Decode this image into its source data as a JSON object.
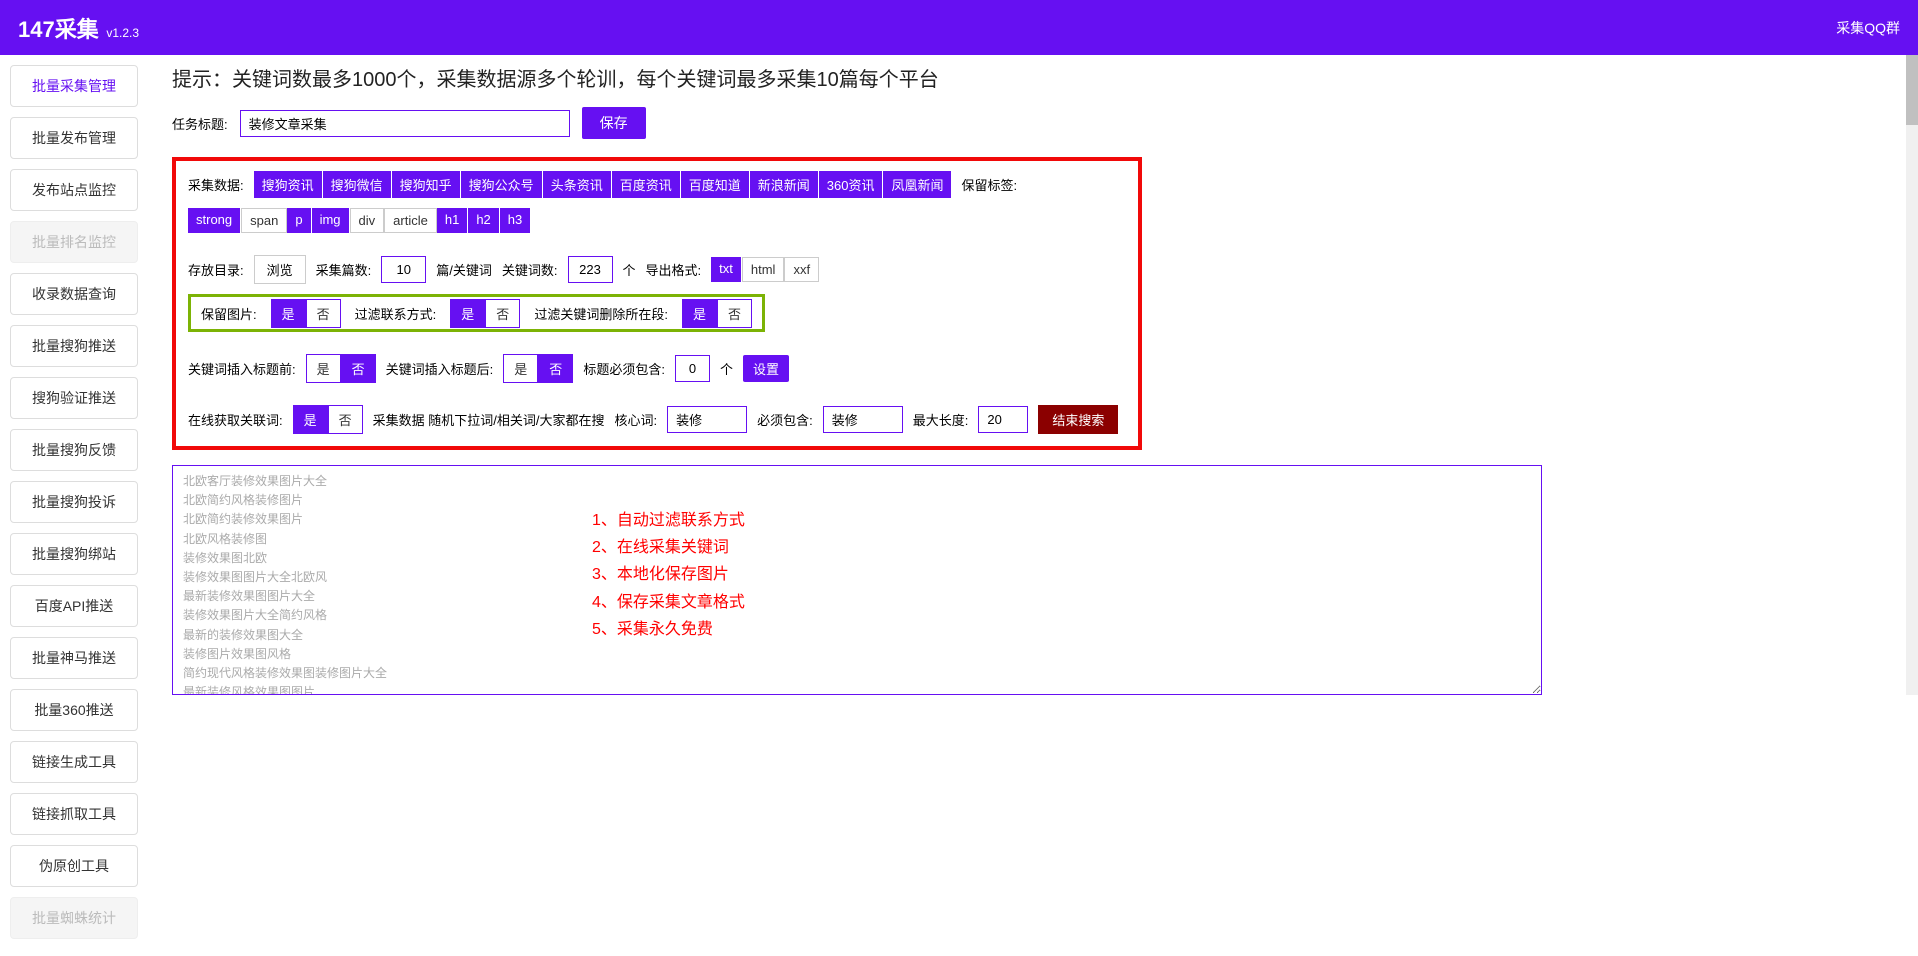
{
  "header": {
    "title": "147采集",
    "version": "v1.2.3",
    "right": "采集QQ群"
  },
  "sidebar": [
    {
      "label": "批量采集管理",
      "state": "active"
    },
    {
      "label": "批量发布管理",
      "state": ""
    },
    {
      "label": "发布站点监控",
      "state": ""
    },
    {
      "label": "批量排名监控",
      "state": "disabled"
    },
    {
      "label": "收录数据查询",
      "state": ""
    },
    {
      "label": "批量搜狗推送",
      "state": ""
    },
    {
      "label": "搜狗验证推送",
      "state": ""
    },
    {
      "label": "批量搜狗反馈",
      "state": ""
    },
    {
      "label": "批量搜狗投诉",
      "state": ""
    },
    {
      "label": "批量搜狗绑站",
      "state": ""
    },
    {
      "label": "百度API推送",
      "state": ""
    },
    {
      "label": "批量神马推送",
      "state": ""
    },
    {
      "label": "批量360推送",
      "state": ""
    },
    {
      "label": "链接生成工具",
      "state": ""
    },
    {
      "label": "链接抓取工具",
      "state": ""
    },
    {
      "label": "伪原创工具",
      "state": ""
    },
    {
      "label": "批量蜘蛛统计",
      "state": "disabled"
    }
  ],
  "tip": "提示：关键词数最多1000个，采集数据源多个轮训，每个关键词最多采集10篇每个平台",
  "task": {
    "label": "任务标题:",
    "value": "装修文章采集",
    "save": "保存"
  },
  "row_source": {
    "label": "采集数据:",
    "tags": [
      "搜狗资讯",
      "搜狗微信",
      "搜狗知乎",
      "搜狗公众号",
      "头条资讯",
      "百度资讯",
      "百度知道",
      "新浪新闻",
      "360资讯",
      "凤凰新闻"
    ],
    "keeptags_label": "保留标签:",
    "keeptags": [
      {
        "t": "strong",
        "on": true
      },
      {
        "t": "span",
        "on": false
      },
      {
        "t": "p",
        "on": true
      },
      {
        "t": "img",
        "on": true
      },
      {
        "t": "div",
        "on": false
      },
      {
        "t": "article",
        "on": false
      },
      {
        "t": "h1",
        "on": true
      },
      {
        "t": "h2",
        "on": true
      },
      {
        "t": "h3",
        "on": true
      }
    ]
  },
  "row_save": {
    "dir_label": "存放目录:",
    "browse": "浏览",
    "count_label": "采集篇数:",
    "count_value": "10",
    "count_unit": "篇/关键词",
    "kw_label": "关键词数:",
    "kw_value": "223",
    "kw_unit": "个",
    "export_label": "导出格式:",
    "export": [
      {
        "t": "txt",
        "on": true
      },
      {
        "t": "html",
        "on": false
      },
      {
        "t": "xxf",
        "on": false
      }
    ],
    "keepimg_label": "保留图片:",
    "keepimg_yes": "是",
    "keepimg_no": "否",
    "filtercontact_label": "过滤联系方式:",
    "fc_yes": "是",
    "fc_no": "否",
    "filterkw_label": "过滤关键词删除所在段:",
    "fk_yes": "是",
    "fk_no": "否"
  },
  "row_insert": {
    "before_label": "关键词插入标题前:",
    "b_yes": "是",
    "b_no": "否",
    "after_label": "关键词插入标题后:",
    "a_yes": "是",
    "a_no": "否",
    "must_label": "标题必须包含:",
    "must_value": "0",
    "must_unit": "个",
    "set": "设置"
  },
  "row_online": {
    "label": "在线获取关联词:",
    "yes": "是",
    "no": "否",
    "note": "采集数据 随机下拉词/相关词/大家都在搜",
    "core_label": "核心词:",
    "core_value": "装修",
    "must_label": "必须包含:",
    "must_value": "装修",
    "maxlen_label": "最大长度:",
    "maxlen_value": "20",
    "end": "结束搜索"
  },
  "keywords_text": "北欧客厅装修效果图片大全\n北欧简约风格装修图片\n北欧简约装修效果图片\n北欧风格装修图\n装修效果图北欧\n装修效果图图片大全北欧风\n最新装修效果图图片大全\n装修效果图片大全简约风格\n最新的装修效果图大全\n装修图片效果图风格\n简约现代风格装修效果图装修图片大全\n最新装修风格效果图图片\n室内装修效果图大全现代简约图片\n简洁装修风格图片大全\n装修效果图图片大全简约",
  "overlay": [
    "1、自动过滤联系方式",
    "2、在线采集关键词",
    "3、本地化保存图片",
    "4、保存采集文章格式",
    "5、采集永久免费"
  ]
}
